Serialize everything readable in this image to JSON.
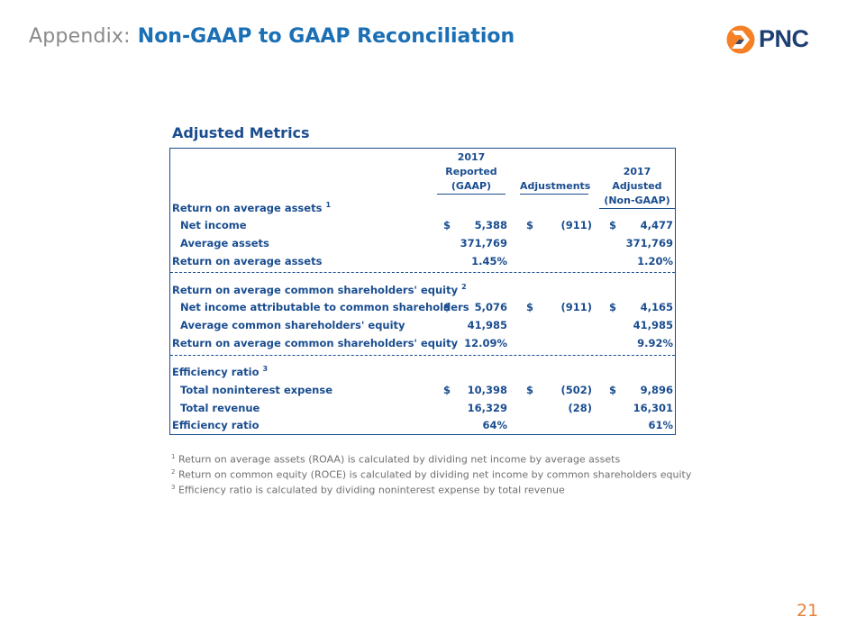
{
  "header": {
    "prefix": "Appendix:",
    "title": "Non-GAAP to GAAP Reconciliation",
    "logo_text": "PNC",
    "logo_color": "#f58025"
  },
  "section_heading": "Adjusted Metrics",
  "columns": {
    "reported_l1": "2017",
    "reported_l2": "Reported",
    "reported_l3": "(GAAP)",
    "adjustments": "Adjustments",
    "adjusted_l1": "2017 Adjusted",
    "adjusted_l2": "(Non-GAAP)"
  },
  "groups": [
    {
      "heading": "Return on average assets",
      "heading_note": "1",
      "rows": [
        {
          "label": "Net income",
          "cur1": "$",
          "reported": "5,388",
          "cur2": "$",
          "adjustments": "(911)",
          "cur3": "$",
          "adjusted": "4,477"
        },
        {
          "label": "Average assets",
          "reported": "371,769",
          "adjustments": "",
          "adjusted": "371,769"
        }
      ],
      "result": {
        "label": "Return on average assets",
        "reported": "1.45%",
        "adjustments": "",
        "adjusted": "1.20%"
      }
    },
    {
      "heading": "Return on average common shareholders' equity",
      "heading_note": "2",
      "rows": [
        {
          "label": "Net income attributable to common shareholders",
          "cur1": "$",
          "reported": "5,076",
          "cur2": "$",
          "adjustments": "(911)",
          "cur3": "$",
          "adjusted": "4,165"
        },
        {
          "label": "Average common shareholders' equity",
          "reported": "41,985",
          "adjustments": "",
          "adjusted": "41,985"
        }
      ],
      "result": {
        "label": "Return on average common shareholders' equity",
        "reported": "12.09%",
        "adjustments": "",
        "adjusted": "9.92%"
      }
    },
    {
      "heading": "Efficiency ratio",
      "heading_note": "3",
      "rows": [
        {
          "label": "Total noninterest expense",
          "cur1": "$",
          "reported": "10,398",
          "cur2": "$",
          "adjustments": "(502)",
          "cur3": "$",
          "adjusted": "9,896"
        },
        {
          "label": "Total revenue",
          "reported": "16,329",
          "adjustments": "(28)",
          "adjusted": "16,301"
        }
      ],
      "result": {
        "label": "Efficiency ratio",
        "reported": "64%",
        "adjustments": "",
        "adjusted": "61%"
      }
    }
  ],
  "footnotes": [
    {
      "mark": "1",
      "text": "Return on average assets (ROAA) is calculated by dividing net income by average assets"
    },
    {
      "mark": "2",
      "text": "Return on common equity (ROCE) is calculated by dividing net income by common shareholders equity"
    },
    {
      "mark": "3",
      "text": "Efficiency ratio is calculated by dividing noninterest expense by total revenue"
    }
  ],
  "page_number": "21"
}
